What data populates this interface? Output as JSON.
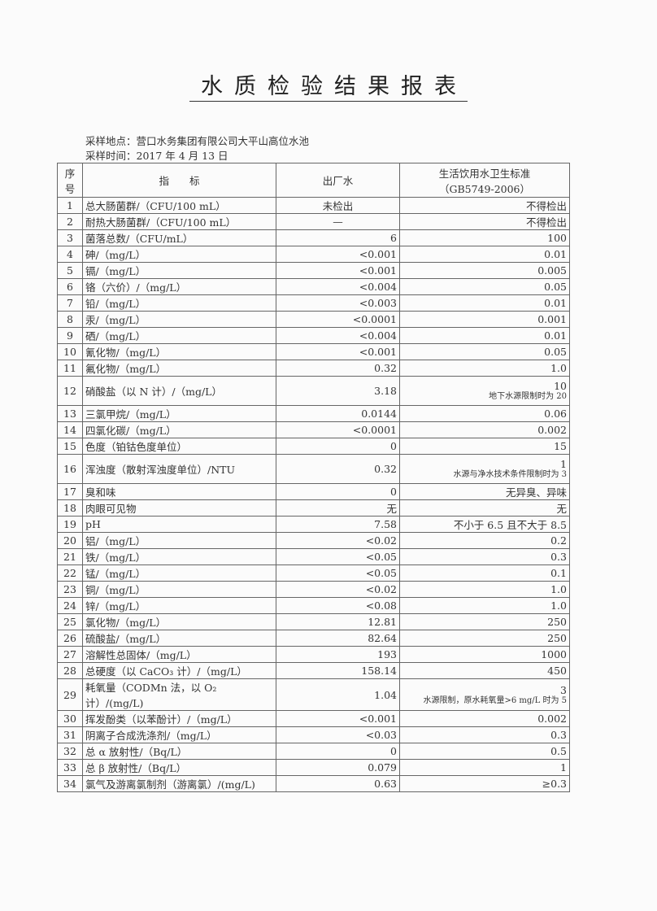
{
  "title": "水质检验结果报表",
  "sampling_location": "采样地点：营口水务集团有限公司大平山高位水池",
  "sampling_time": "采样时间：2017 年 4 月 13 日",
  "headers": {
    "seq": "序号",
    "indicator": "指　　标",
    "result": "出厂水",
    "standard": "生活饮用水卫生标准",
    "standard_code": "（GB5749-2006）"
  },
  "rows": [
    {
      "seq": "1",
      "name": "总大肠菌群/（CFU/100 mL）",
      "result": "未检出",
      "standard": "不得检出",
      "note": ""
    },
    {
      "seq": "2",
      "name": "耐热大肠菌群/（CFU/100 mL）",
      "result": "—",
      "standard": "不得检出",
      "note": ""
    },
    {
      "seq": "3",
      "name": "菌落总数/（CFU/mL）",
      "result": "6",
      "standard": "100",
      "note": ""
    },
    {
      "seq": "4",
      "name": "砷/（mg/L）",
      "result": "<0.001",
      "standard": "0.01",
      "note": ""
    },
    {
      "seq": "5",
      "name": "镉/（mg/L）",
      "result": "<0.001",
      "standard": "0.005",
      "note": ""
    },
    {
      "seq": "6",
      "name": "铬（六价）/（mg/L）",
      "result": "<0.004",
      "standard": "0.05",
      "note": ""
    },
    {
      "seq": "7",
      "name": "铅/（mg/L）",
      "result": "<0.003",
      "standard": "0.01",
      "note": ""
    },
    {
      "seq": "8",
      "name": "汞/（mg/L）",
      "result": "<0.0001",
      "standard": "0.001",
      "note": ""
    },
    {
      "seq": "9",
      "name": "硒/（mg/L）",
      "result": "<0.004",
      "standard": "0.01",
      "note": ""
    },
    {
      "seq": "10",
      "name": "氰化物/（mg/L）",
      "result": "<0.001",
      "standard": "0.05",
      "note": ""
    },
    {
      "seq": "11",
      "name": "氟化物/（mg/L）",
      "result": "0.32",
      "standard": "1.0",
      "note": ""
    },
    {
      "seq": "12",
      "name": "硝酸盐（以 N 计）/（mg/L）",
      "result": "3.18",
      "standard": "10",
      "note": "地下水源限制时为 20"
    },
    {
      "seq": "13",
      "name": "三氯甲烷/（mg/L）",
      "result": "0.0144",
      "standard": "0.06",
      "note": ""
    },
    {
      "seq": "14",
      "name": "四氯化碳/（mg/L）",
      "result": "<0.0001",
      "standard": "0.002",
      "note": ""
    },
    {
      "seq": "15",
      "name": "色度（铂钴色度单位）",
      "result": "0",
      "standard": "15",
      "note": ""
    },
    {
      "seq": "16",
      "name": "浑浊度（散射浑浊度单位）/NTU",
      "result": "0.32",
      "standard": "1",
      "note": "水源与净水技术条件限制时为 3"
    },
    {
      "seq": "17",
      "name": "臭和味",
      "result": "0",
      "standard": "无异臭、异味",
      "note": ""
    },
    {
      "seq": "18",
      "name": "肉眼可见物",
      "result": "无",
      "standard": "无",
      "note": ""
    },
    {
      "seq": "19",
      "name": "pH",
      "result": "7.58",
      "standard": "不小于 6.5 且不大于 8.5",
      "note": ""
    },
    {
      "seq": "20",
      "name": "铝/（mg/L）",
      "result": "<0.02",
      "standard": "0.2",
      "note": ""
    },
    {
      "seq": "21",
      "name": "铁/（mg/L）",
      "result": "<0.05",
      "standard": "0.3",
      "note": ""
    },
    {
      "seq": "22",
      "name": "锰/（mg/L）",
      "result": "<0.05",
      "standard": "0.1",
      "note": ""
    },
    {
      "seq": "23",
      "name": "铜/（mg/L）",
      "result": "<0.02",
      "standard": "1.0",
      "note": ""
    },
    {
      "seq": "24",
      "name": "锌/（mg/L）",
      "result": "<0.08",
      "standard": "1.0",
      "note": ""
    },
    {
      "seq": "25",
      "name": "氯化物/（mg/L）",
      "result": "12.81",
      "standard": "250",
      "note": ""
    },
    {
      "seq": "26",
      "name": "硫酸盐/（mg/L）",
      "result": "82.64",
      "standard": "250",
      "note": ""
    },
    {
      "seq": "27",
      "name": "溶解性总固体/（mg/L）",
      "result": "193",
      "standard": "1000",
      "note": ""
    },
    {
      "seq": "28",
      "name": "总硬度（以 CaCO₃ 计）/（mg/L）",
      "result": "158.14",
      "standard": "450",
      "note": ""
    },
    {
      "seq": "29",
      "name": "耗氧量（CODMn 法，以 O₂ 计）/(mg/L)",
      "result": "1.04",
      "standard": "3",
      "note": "水源限制，原水耗氧量>6 mg/L 时为 5"
    },
    {
      "seq": "30",
      "name": "挥发酚类（以苯酚计）/（mg/L）",
      "result": "<0.001",
      "standard": "0.002",
      "note": ""
    },
    {
      "seq": "31",
      "name": "阴离子合成洗涤剂/（mg/L）",
      "result": "<0.03",
      "standard": "0.3",
      "note": ""
    },
    {
      "seq": "32",
      "name": "总 α 放射性/（Bq/L）",
      "result": "0",
      "standard": "0.5",
      "note": ""
    },
    {
      "seq": "33",
      "name": "总 β 放射性/（Bq/L）",
      "result": "0.079",
      "standard": "1",
      "note": ""
    },
    {
      "seq": "34",
      "name": "氯气及游离氯制剂（游离氯）/(mg/L)",
      "result": "0.63",
      "standard": "≥0.3",
      "note": ""
    }
  ]
}
